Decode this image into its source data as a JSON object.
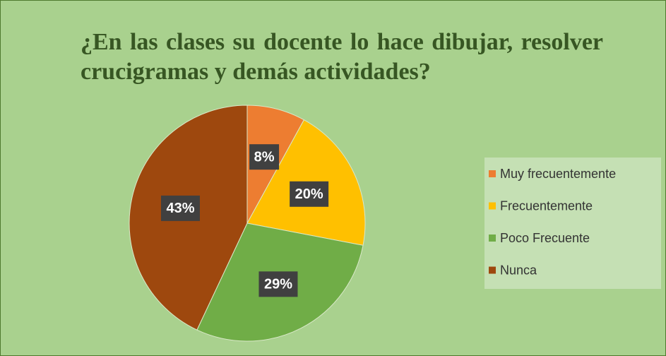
{
  "chart_data": {
    "type": "pie",
    "title": "¿En las clases su docente lo hace dibujar, resolver crucigramas y demás actividades?",
    "categories": [
      "Muy frecuentemente",
      "Frecuentemente",
      "Poco Frecuente",
      "Nunca"
    ],
    "values": [
      8,
      20,
      29,
      43
    ],
    "value_labels": [
      "8%",
      "20%",
      "29%",
      "43%"
    ],
    "colors": [
      "#ed7d31",
      "#ffc000",
      "#70ad47",
      "#9e480e"
    ],
    "legend": "right"
  }
}
